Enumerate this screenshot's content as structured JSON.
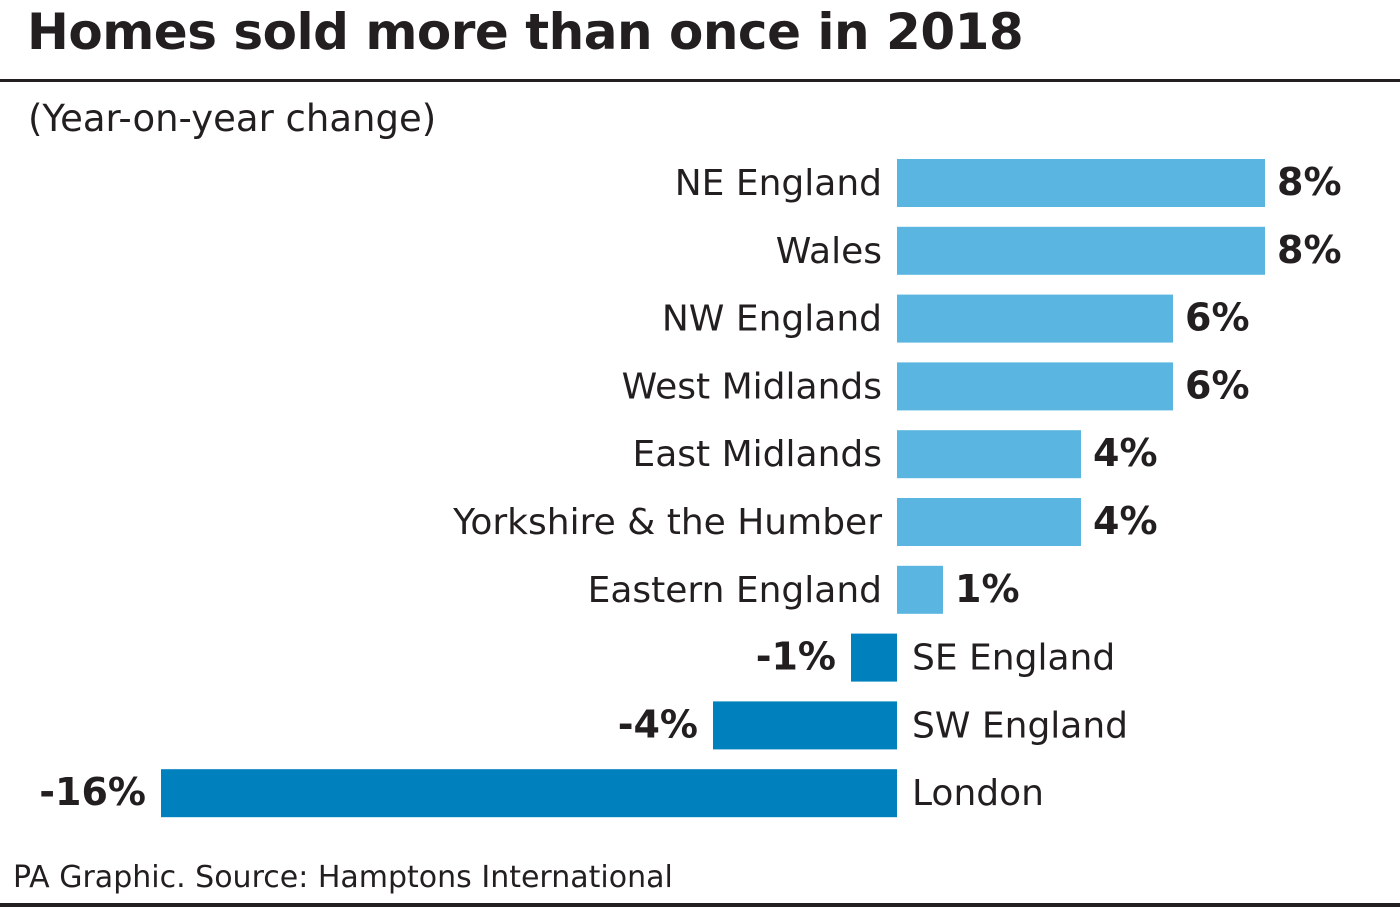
{
  "chart_data": {
    "type": "bar",
    "orientation": "horizontal",
    "title": "Homes sold more than once in 2018",
    "subtitle": "(Year-on-year change)",
    "categories": [
      "NE England",
      "Wales",
      "NW England",
      "West Midlands",
      "East Midlands",
      "Yorkshire & the Humber",
      "Eastern England",
      "SE England",
      "SW England",
      "London"
    ],
    "values": [
      8,
      8,
      6,
      6,
      4,
      4,
      1,
      -1,
      -4,
      -16
    ],
    "value_labels": [
      "8%",
      "8%",
      "6%",
      "6%",
      "4%",
      "4%",
      "1%",
      "-1%",
      "-4%",
      "-16%"
    ],
    "unit": "%",
    "xlim": [
      -16,
      8
    ],
    "grid": false,
    "legend": "none",
    "colors": {
      "positive": "#5ab6e0",
      "negative": "#0080bd"
    },
    "source": "PA Graphic. Source: Hamptons International"
  }
}
